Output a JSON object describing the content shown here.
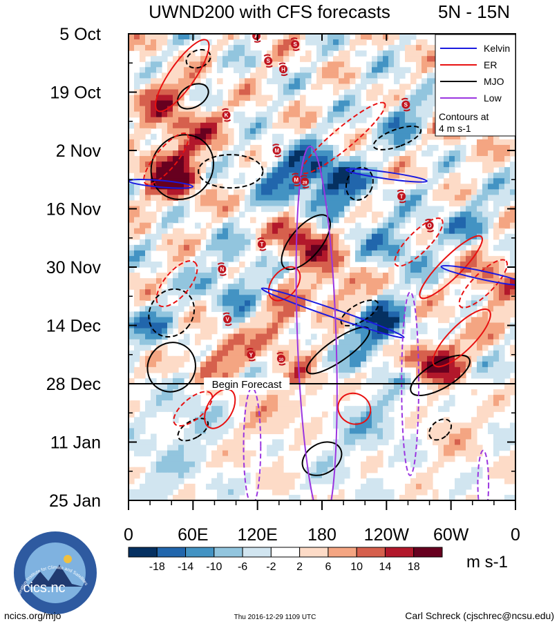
{
  "chart_data": {
    "type": "heatmap",
    "title": "UWND200 with CFS forecasts",
    "region": "5N - 15N",
    "y_axis": {
      "type": "time",
      "ticks": [
        "5 Oct",
        "19 Oct",
        "2 Nov",
        "16 Nov",
        "30 Nov",
        "14 Dec",
        "28 Dec",
        "11 Jan",
        "25 Jan"
      ],
      "range_days": [
        0,
        112
      ]
    },
    "x_axis": {
      "type": "longitude",
      "ticks": [
        "0",
        "60E",
        "120E",
        "180",
        "120W",
        "60W",
        "0"
      ],
      "range_deg": [
        0,
        360
      ]
    },
    "colorbar": {
      "levels": [
        "-18",
        "-14",
        "-10",
        "-6",
        "-2",
        "2",
        "6",
        "10",
        "14",
        "18"
      ],
      "colors": [
        "#053061",
        "#2166ac",
        "#4393c3",
        "#92c5de",
        "#d1e5f0",
        "#ffffff",
        "#fddbc7",
        "#f4a582",
        "#d6604d",
        "#b2182b",
        "#67001f"
      ],
      "units": "m s-1"
    },
    "legend": {
      "position": "top-right",
      "items": [
        {
          "label": "Kelvin",
          "color": "#1a1adf"
        },
        {
          "label": "ER",
          "color": "#e81010"
        },
        {
          "label": "MJO",
          "color": "#000000"
        },
        {
          "label": "Low",
          "color": "#9a35e0"
        }
      ],
      "note": "Contours at\n4 m s-1"
    },
    "forecast_line_day": 84,
    "forecast_label": "Begin Forecast",
    "storm_symbols": [
      {
        "label": "A",
        "lon": 119,
        "day": 0.5
      },
      {
        "label": "S",
        "lon": 155,
        "day": 2.5
      },
      {
        "label": "S",
        "lon": 130,
        "day": 6.5
      },
      {
        "label": "H",
        "lon": 144,
        "day": 8.5
      },
      {
        "label": "K",
        "lon": 91,
        "day": 19.5
      },
      {
        "label": "S",
        "lon": 258,
        "day": 17
      },
      {
        "label": "M",
        "lon": 138,
        "day": 28
      },
      {
        "label": "M",
        "lon": 156,
        "day": 35
      },
      {
        "label": "28",
        "lon": 164,
        "day": 35.5
      },
      {
        "label": "T",
        "lon": 254,
        "day": 39
      },
      {
        "label": "O",
        "lon": 280,
        "day": 46
      },
      {
        "label": "T",
        "lon": 124,
        "day": 50.5
      },
      {
        "label": "N",
        "lon": 87,
        "day": 56.5
      },
      {
        "label": "V",
        "lon": 92,
        "day": 68.5
      },
      {
        "label": "Y",
        "lon": 114,
        "day": 77
      },
      {
        "label": "10",
        "lon": 142,
        "day": 78
      }
    ]
  },
  "footer": {
    "logo_text": "cics.nc",
    "logo_ring_text": "Cooperative Institute for Climate and Satellites",
    "url": "ncics.org/mjo",
    "timestamp": "Thu 2016-12-29 1109 UTC",
    "author": "Carl Schreck (cjschrec@ncsu.edu)"
  }
}
